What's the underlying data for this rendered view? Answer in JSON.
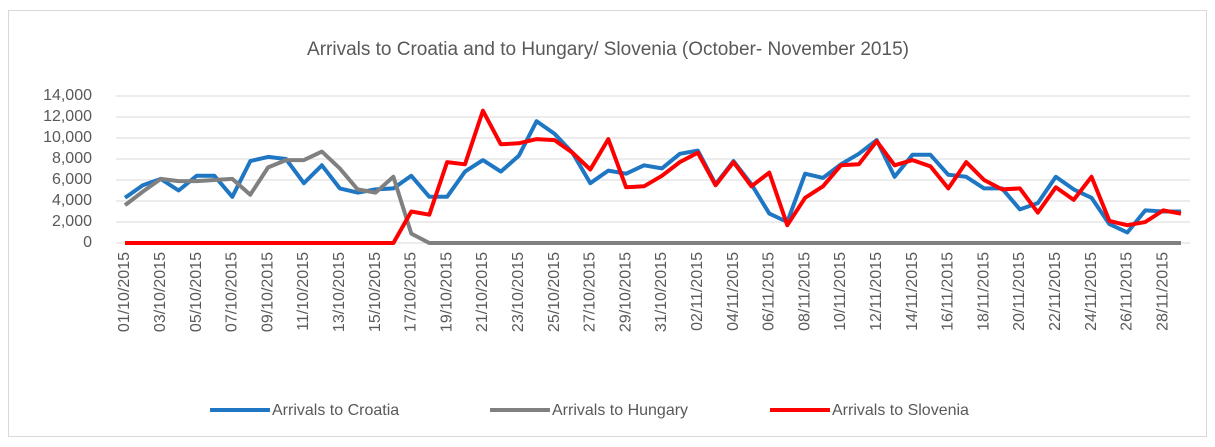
{
  "chart_data": {
    "type": "line",
    "title": "Arrivals to Croatia and to Hungary/ Slovenia (October- November 2015)",
    "categories": [
      "01/10/2015",
      null,
      "03/10/2015",
      null,
      "05/10/2015",
      null,
      "07/10/2015",
      null,
      "09/10/2015",
      null,
      "11/10/2015",
      null,
      "13/10/2015",
      null,
      "15/10/2015",
      null,
      "17/10/2015",
      null,
      "19/10/2015",
      null,
      "21/10/2015",
      null,
      "23/10/2015",
      null,
      "25/10/2015",
      null,
      "27/10/2015",
      null,
      "29/10/2015",
      null,
      "31/10/2015",
      null,
      "02/11/2015",
      null,
      "04/11/2015",
      null,
      "06/11/2015",
      null,
      "08/11/2015",
      null,
      "10/11/2015",
      null,
      "12/11/2015",
      null,
      "14/11/2015",
      null,
      "16/11/2015",
      null,
      "18/11/2015",
      null,
      "20/11/2015",
      null,
      "22/11/2015",
      null,
      "24/11/2015",
      null,
      "26/11/2015",
      null,
      "28/11/2015",
      null
    ],
    "series": [
      {
        "name": "Arrivals to Croatia",
        "color": "#1f77c4",
        "values": [
          4300,
          5500,
          6100,
          5000,
          6400,
          6400,
          4400,
          7800,
          8200,
          8000,
          5700,
          7400,
          5200,
          4800,
          5100,
          5200,
          6400,
          4400,
          4400,
          6800,
          7900,
          6800,
          8300,
          11600,
          10400,
          8600,
          5700,
          6900,
          6600,
          7400,
          7100,
          8500,
          8800,
          5600,
          7800,
          5600,
          2800,
          2000,
          6600,
          6200,
          7500,
          8500,
          9800,
          6300,
          8400,
          8400,
          6500,
          6300,
          5200,
          5200,
          3200,
          3800,
          6300,
          5100,
          4300,
          1800,
          1000,
          3100,
          3000,
          3000
        ]
      },
      {
        "name": "Arrivals to Hungary",
        "color": "#808080",
        "values": [
          3600,
          4900,
          6100,
          5900,
          5900,
          6000,
          6100,
          4600,
          7200,
          7900,
          7900,
          8700,
          7100,
          5100,
          4800,
          6300,
          900,
          0,
          0,
          0,
          0,
          0,
          0,
          0,
          0,
          0,
          0,
          0,
          0,
          0,
          0,
          0,
          0,
          0,
          0,
          0,
          0,
          0,
          0,
          0,
          0,
          0,
          0,
          0,
          0,
          0,
          0,
          0,
          0,
          0,
          0,
          0,
          0,
          0,
          0,
          0,
          0,
          0,
          0,
          0
        ]
      },
      {
        "name": "Arrivals to Slovenia",
        "color": "#ff0000",
        "values": [
          0,
          0,
          0,
          0,
          0,
          0,
          0,
          0,
          0,
          0,
          0,
          0,
          0,
          0,
          0,
          0,
          3000,
          2700,
          7700,
          7500,
          12600,
          9400,
          9500,
          9900,
          9800,
          8600,
          7000,
          9900,
          5300,
          5400,
          6400,
          7700,
          8600,
          5500,
          7700,
          5400,
          6700,
          1700,
          4300,
          5400,
          7400,
          7500,
          9700,
          7400,
          7900,
          7300,
          5200,
          7700,
          6000,
          5100,
          5200,
          2900,
          5300,
          4100,
          6300,
          2100,
          1700,
          2000,
          3100,
          2800
        ]
      }
    ],
    "ylim": [
      0,
      14000
    ],
    "yticks": [
      0,
      {
        "value": 2000,
        "label": "2,000"
      },
      {
        "value": 4000,
        "label": "4,000"
      },
      {
        "value": 6000,
        "label": "6,000"
      },
      {
        "value": 8000,
        "label": "8,000"
      },
      {
        "value": 10000,
        "label": "10,000"
      },
      {
        "value": 12000,
        "label": "12,000"
      },
      {
        "value": 14000,
        "label": "14,000"
      }
    ],
    "grid": true,
    "legend": "bottom"
  }
}
